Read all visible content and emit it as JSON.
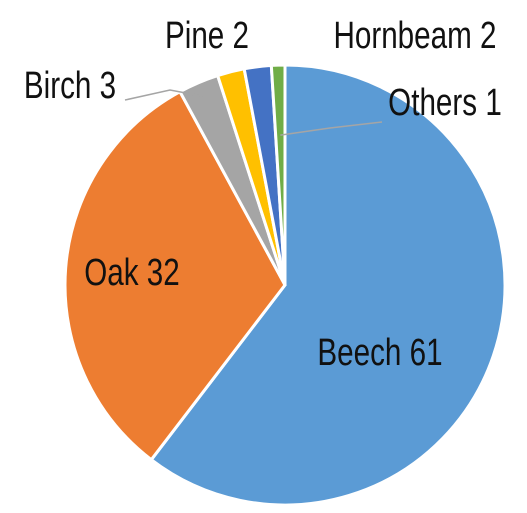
{
  "chart_data": {
    "type": "pie",
    "categories": [
      "Beech",
      "Oak",
      "Birch",
      "Pine",
      "Hornbeam",
      "Others"
    ],
    "values": [
      61,
      32,
      3,
      2,
      2,
      1
    ],
    "colors": [
      "#5b9bd5",
      "#ed7d31",
      "#a5a5a5",
      "#ffc000",
      "#4472c4",
      "#70ad47"
    ]
  }
}
